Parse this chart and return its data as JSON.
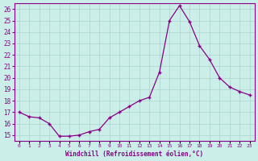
{
  "x": [
    0,
    1,
    2,
    3,
    4,
    5,
    6,
    7,
    8,
    9,
    10,
    11,
    12,
    13,
    14,
    15,
    16,
    17,
    18,
    19,
    20,
    21,
    22,
    23
  ],
  "y": [
    17.0,
    16.6,
    16.5,
    16.0,
    14.9,
    14.9,
    15.0,
    15.3,
    15.5,
    16.5,
    17.0,
    17.5,
    18.0,
    18.3,
    20.5,
    25.0,
    26.3,
    24.9,
    22.8,
    21.6,
    20.0,
    19.2,
    18.8,
    18.5
  ],
  "xlabel": "Windchill (Refroidissement éolien,°C)",
  "ylim": [
    14.5,
    26.5
  ],
  "xlim": [
    -0.5,
    23.5
  ],
  "yticks": [
    15,
    16,
    17,
    18,
    19,
    20,
    21,
    22,
    23,
    24,
    25,
    26
  ],
  "xtick_labels": [
    "0",
    "1",
    "2",
    "3",
    "4",
    "5",
    "6",
    "7",
    "8",
    "9",
    "10",
    "11",
    "12",
    "13",
    "14",
    "15",
    "16",
    "17",
    "18",
    "19",
    "20",
    "21",
    "22",
    "23"
  ],
  "line_color": "#880088",
  "bg_color": "#cceee8",
  "grid_color": "#aad4cc",
  "font_color": "#880088"
}
